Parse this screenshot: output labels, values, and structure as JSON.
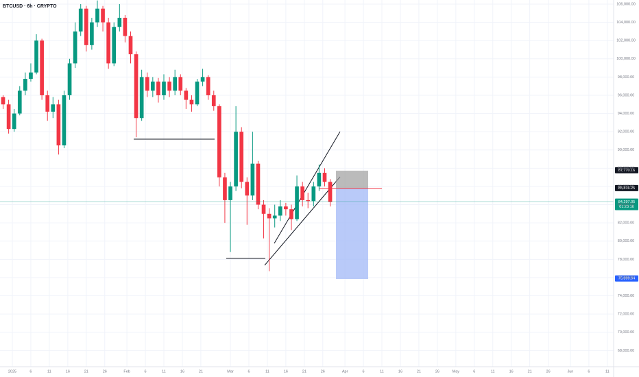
{
  "chart_data": {
    "type": "candlestick",
    "title": "BTCUSD · 6h · CRYPTO",
    "up_color": "#089981",
    "down_color": "#f23645",
    "grid": true,
    "xlim": [
      -3.34,
      162.7
    ],
    "ylim": [
      66220,
      106451
    ],
    "xticks": [
      {
        "value": 0,
        "label": "2025"
      },
      {
        "value": 5,
        "label": "6"
      },
      {
        "value": 10,
        "label": "11"
      },
      {
        "value": 15,
        "label": "16"
      },
      {
        "value": 20,
        "label": "21"
      },
      {
        "value": 25,
        "label": "26"
      },
      {
        "value": 31,
        "label": "Feb"
      },
      {
        "value": 36,
        "label": "6"
      },
      {
        "value": 41,
        "label": "11"
      },
      {
        "value": 46,
        "label": "16"
      },
      {
        "value": 51,
        "label": "21"
      },
      {
        "value": 59,
        "label": "Mar"
      },
      {
        "value": 64,
        "label": "6"
      },
      {
        "value": 69,
        "label": "11"
      },
      {
        "value": 74,
        "label": "16"
      },
      {
        "value": 79,
        "label": "21"
      },
      {
        "value": 84,
        "label": "26"
      },
      {
        "value": 90,
        "label": "Apr"
      },
      {
        "value": 95,
        "label": "6"
      },
      {
        "value": 100,
        "label": "11"
      },
      {
        "value": 105,
        "label": "16"
      },
      {
        "value": 110,
        "label": "21"
      },
      {
        "value": 115,
        "label": "26"
      },
      {
        "value": 120,
        "label": "May"
      },
      {
        "value": 125,
        "label": "6"
      },
      {
        "value": 130,
        "label": "11"
      },
      {
        "value": 135,
        "label": "16"
      },
      {
        "value": 140,
        "label": "21"
      },
      {
        "value": 145,
        "label": "26"
      },
      {
        "value": 151,
        "label": "Jun"
      },
      {
        "value": 156,
        "label": "6"
      },
      {
        "value": 161,
        "label": "11"
      }
    ],
    "yticks": [
      {
        "value": 68000,
        "label": "68,000.00"
      },
      {
        "value": 70000,
        "label": "70,000.00"
      },
      {
        "value": 72000,
        "label": "72,000.00"
      },
      {
        "value": 74000,
        "label": "74,000.00"
      },
      {
        "value": 76000,
        "label": "76,000.00"
      },
      {
        "value": 78000,
        "label": "78,000.00"
      },
      {
        "value": 80000,
        "label": "80,000.00"
      },
      {
        "value": 82000,
        "label": "82,000.00"
      },
      {
        "value": 84000,
        "label": "84,000.00"
      },
      {
        "value": 86000,
        "label": "86,000.00"
      },
      {
        "value": 88000,
        "label": "88,000.00"
      },
      {
        "value": 90000,
        "label": "90,000.00"
      },
      {
        "value": 92000,
        "label": "92,000.00"
      },
      {
        "value": 94000,
        "label": "94,000.00"
      },
      {
        "value": 96000,
        "label": "96,000.00"
      },
      {
        "value": 98000,
        "label": "98,000.00"
      },
      {
        "value": 100000,
        "label": "100,000.00"
      },
      {
        "value": 102000,
        "label": "102,000.00"
      },
      {
        "value": 104000,
        "label": "104,000.00"
      },
      {
        "value": 106000,
        "label": "106,000.00"
      }
    ],
    "candles": {
      "x": [
        -2.5,
        -1,
        0.5,
        2,
        3.5,
        5,
        6.5,
        8,
        9.5,
        11,
        12.5,
        14,
        15.5,
        17,
        18.5,
        20,
        21.5,
        23,
        24.5,
        26,
        27.5,
        29,
        30.5,
        32,
        33.5,
        35,
        36.5,
        38,
        39.5,
        41,
        42.5,
        44,
        45.5,
        47,
        48.5,
        50,
        51.5,
        53,
        54.5,
        56,
        57.5,
        59,
        60.5,
        62,
        63.5,
        65,
        66.5,
        68,
        69.5,
        71,
        72.5,
        74,
        75.5,
        77,
        78.5,
        80,
        81.5,
        83,
        84.5,
        86
      ],
      "open": [
        95800,
        95000,
        92300,
        94000,
        96500,
        97800,
        98500,
        102000,
        96000,
        94200,
        95000,
        90500,
        96000,
        99500,
        103000,
        105500,
        101500,
        104000,
        105500,
        104000,
        99500,
        103500,
        104500,
        102500,
        100500,
        93500,
        98000,
        96500,
        97500,
        96000,
        97500,
        96500,
        98000,
        96500,
        95500,
        95000,
        97500,
        98000,
        96000,
        94800,
        87000,
        84500,
        86000,
        92000,
        86500,
        85000,
        88500,
        84000,
        83000,
        82500,
        82800,
        83800,
        83500,
        82400,
        86000,
        84500,
        84400,
        86000,
        87500,
        86500
      ],
      "high": [
        96000,
        95500,
        94500,
        97000,
        98500,
        99500,
        102700,
        102200,
        96500,
        95800,
        95500,
        96500,
        100000,
        104000,
        106000,
        105800,
        104500,
        106400,
        105800,
        104500,
        104000,
        106000,
        104800,
        103000,
        100800,
        98800,
        98500,
        98000,
        97900,
        98300,
        98000,
        98800,
        98300,
        96800,
        96000,
        97800,
        98900,
        98200,
        96500,
        95000,
        87500,
        86500,
        94800,
        92500,
        87000,
        92000,
        88800,
        84500,
        83600,
        84000,
        84500,
        84200,
        84000,
        87200,
        86500,
        85300,
        86500,
        88400,
        88000,
        86800
      ],
      "low": [
        94500,
        91800,
        92000,
        93800,
        96000,
        97500,
        98300,
        95500,
        93200,
        93500,
        89500,
        90200,
        95500,
        99000,
        102500,
        100800,
        101000,
        103500,
        103000,
        98900,
        99200,
        103000,
        101800,
        99500,
        91400,
        93200,
        95800,
        95800,
        95200,
        95500,
        95800,
        96000,
        96000,
        94500,
        94200,
        94800,
        97000,
        95500,
        94300,
        86000,
        82000,
        78800,
        85500,
        85800,
        81800,
        84500,
        83500,
        80300,
        76700,
        81500,
        82200,
        82800,
        81200,
        82200,
        83800,
        83600,
        83800,
        85500,
        86000,
        83800
      ],
      "close": [
        95000,
        92300,
        94000,
        96500,
        97800,
        98500,
        102000,
        96000,
        94200,
        95000,
        90500,
        96000,
        99500,
        103000,
        105500,
        101500,
        104000,
        105500,
        104000,
        99500,
        103500,
        104500,
        102500,
        100500,
        93500,
        98000,
        96500,
        97500,
        96000,
        97500,
        96500,
        98000,
        96500,
        95500,
        95000,
        97500,
        98000,
        96000,
        94800,
        87000,
        84500,
        86000,
        92000,
        86500,
        85000,
        88500,
        84000,
        83000,
        82500,
        82800,
        83800,
        83500,
        82400,
        86000,
        84500,
        84400,
        86000,
        87500,
        86500,
        84300
      ]
    },
    "last_price": {
      "value": 84297.05,
      "label": "84,297.05",
      "countdown": "01:23:16",
      "color": "#089981"
    },
    "price_labels": [
      {
        "value": 87770.16,
        "label": "87,770.16",
        "color": "#131722"
      },
      {
        "value": 85816.25,
        "label": "85,816.25",
        "color": "#131722"
      },
      {
        "value": 75899.94,
        "label": "75,899.94",
        "color": "#2962ff"
      }
    ]
  }
}
